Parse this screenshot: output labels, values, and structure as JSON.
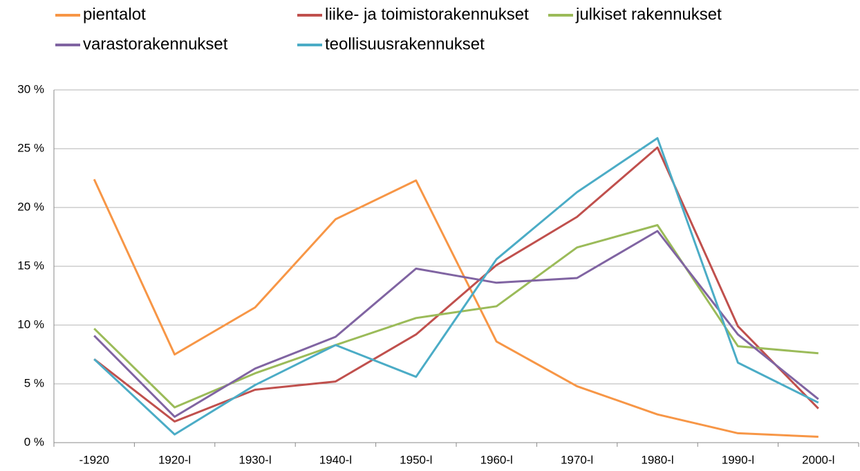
{
  "chart_data": {
    "type": "line",
    "categories": [
      "-1920",
      "1920-l",
      "1930-l",
      "1940-l",
      "1950-l",
      "1960-l",
      "1970-l",
      "1980-l",
      "1990-l",
      "2000-l"
    ],
    "series": [
      {
        "name": "pientalot",
        "color": "#f79646",
        "values": [
          22.4,
          7.5,
          11.5,
          19.0,
          22.3,
          8.6,
          4.8,
          2.4,
          0.8,
          0.5
        ]
      },
      {
        "name": "liike- ja toimistorakennukset",
        "color": "#c0504d",
        "values": [
          7.1,
          1.8,
          4.5,
          5.2,
          9.2,
          15.1,
          19.2,
          25.1,
          9.9,
          2.9
        ]
      },
      {
        "name": "julkiset rakennukset",
        "color": "#9bbb59",
        "values": [
          9.7,
          3.0,
          5.9,
          8.3,
          10.6,
          11.6,
          16.6,
          18.5,
          8.2,
          7.6
        ]
      },
      {
        "name": "varastorakennukset",
        "color": "#8064a2",
        "values": [
          9.1,
          2.2,
          6.3,
          9.0,
          14.8,
          13.6,
          14.0,
          18.0,
          9.2,
          3.7
        ]
      },
      {
        "name": "teollisuusrakennukset",
        "color": "#4bacc6",
        "values": [
          7.1,
          0.7,
          4.9,
          8.3,
          5.6,
          15.6,
          21.3,
          25.9,
          6.8,
          3.4
        ]
      }
    ],
    "ylim": [
      0,
      30
    ],
    "yticks": [
      {
        "value": 0,
        "label": "0 %"
      },
      {
        "value": 5,
        "label": "5 %"
      },
      {
        "value": 10,
        "label": "10 %"
      },
      {
        "value": 15,
        "label": "15 %"
      },
      {
        "value": 20,
        "label": "20 %"
      },
      {
        "value": 25,
        "label": "25 %"
      },
      {
        "value": 30,
        "label": "30 %"
      }
    ],
    "grid": true,
    "legend": "top"
  }
}
